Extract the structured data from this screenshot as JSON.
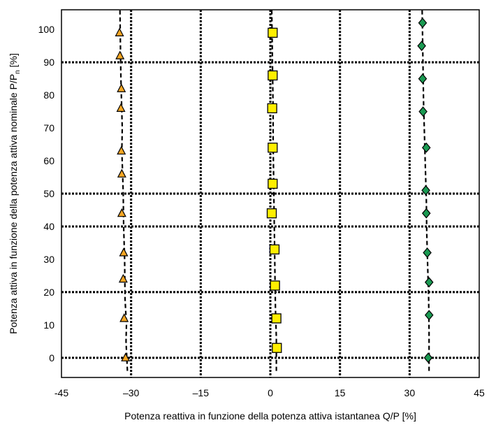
{
  "chart_data": {
    "type": "scatter",
    "title": "",
    "xlabel": "Potenza reattiva in funzione della potenza attiva istantanea Q/P [%]",
    "ylabel_main": "Potenza attiva in funzione della potenza attiva nominale P/P",
    "ylabel_sub": "n",
    "ylabel_tail": " [%]",
    "xlim": [
      -45,
      45
    ],
    "ylim": [
      -6,
      106
    ],
    "x_ticks": [
      -45,
      -30,
      -15,
      0,
      15,
      30,
      45
    ],
    "x_tick_labels": [
      "-45",
      "–30",
      "–15",
      "0",
      "15",
      "30",
      "45"
    ],
    "y_ticks": [
      0,
      10,
      20,
      30,
      40,
      50,
      60,
      70,
      80,
      90,
      100
    ],
    "y_tick_labels": [
      "0",
      "10",
      "20",
      "30",
      "40",
      "50",
      "60",
      "70",
      "80",
      "90",
      "100"
    ],
    "v_grid_x": [
      -30,
      -15,
      0,
      15,
      30
    ],
    "h_grid_y": [
      0,
      20,
      40,
      50,
      90
    ],
    "grid": true,
    "legend": "none",
    "series": [
      {
        "marker": "triangle",
        "color": "#f5a623",
        "points": [
          [
            -31.2,
            0
          ],
          [
            -31.5,
            12
          ],
          [
            -31.7,
            24
          ],
          [
            -31.6,
            32
          ],
          [
            -32.0,
            44
          ],
          [
            -32.0,
            56
          ],
          [
            -32.1,
            63
          ],
          [
            -32.2,
            76
          ],
          [
            -32.1,
            82
          ],
          [
            -32.4,
            92
          ],
          [
            -32.5,
            99
          ]
        ],
        "trend": [
          [
            -30.8,
            -4
          ],
          [
            -31.1,
            5
          ],
          [
            -31.0,
            10
          ],
          [
            -31.3,
            18
          ],
          [
            -31.4,
            30
          ],
          [
            -31.6,
            40
          ],
          [
            -31.7,
            50
          ],
          [
            -31.8,
            55
          ],
          [
            -32.0,
            63
          ],
          [
            -31.9,
            70
          ],
          [
            -32.1,
            80
          ],
          [
            -32.2,
            86
          ],
          [
            -32.3,
            95
          ],
          [
            -32.4,
            106
          ]
        ]
      },
      {
        "marker": "square",
        "color": "#ffee00",
        "points": [
          [
            1.4,
            3
          ],
          [
            1.3,
            12
          ],
          [
            1.0,
            22
          ],
          [
            0.9,
            33
          ],
          [
            0.3,
            44
          ],
          [
            0.5,
            53
          ],
          [
            0.5,
            64
          ],
          [
            0.4,
            76
          ],
          [
            0.5,
            86
          ],
          [
            0.5,
            99
          ]
        ],
        "trend": [
          [
            1.3,
            -4
          ],
          [
            1.3,
            6
          ],
          [
            1.1,
            15
          ],
          [
            1.0,
            25
          ],
          [
            0.9,
            35
          ],
          [
            0.8,
            45
          ],
          [
            0.7,
            55
          ],
          [
            0.6,
            65
          ],
          [
            0.6,
            75
          ],
          [
            0.5,
            85
          ],
          [
            0.4,
            95
          ],
          [
            0.3,
            106
          ]
        ]
      },
      {
        "marker": "diamond",
        "color": "#1a9a52",
        "points": [
          [
            34.0,
            0
          ],
          [
            34.2,
            13
          ],
          [
            34.2,
            23
          ],
          [
            33.8,
            32
          ],
          [
            33.6,
            44
          ],
          [
            33.5,
            51
          ],
          [
            33.6,
            64
          ],
          [
            32.9,
            75
          ],
          [
            32.8,
            85
          ],
          [
            32.6,
            95
          ],
          [
            32.8,
            102
          ]
        ],
        "trend": [
          [
            34.2,
            -4
          ],
          [
            34.2,
            8
          ],
          [
            34.1,
            18
          ],
          [
            33.9,
            28
          ],
          [
            33.7,
            38
          ],
          [
            33.6,
            48
          ],
          [
            33.4,
            58
          ],
          [
            33.2,
            68
          ],
          [
            33.0,
            78
          ],
          [
            32.9,
            88
          ],
          [
            32.8,
            98
          ],
          [
            32.7,
            106
          ]
        ]
      }
    ]
  }
}
